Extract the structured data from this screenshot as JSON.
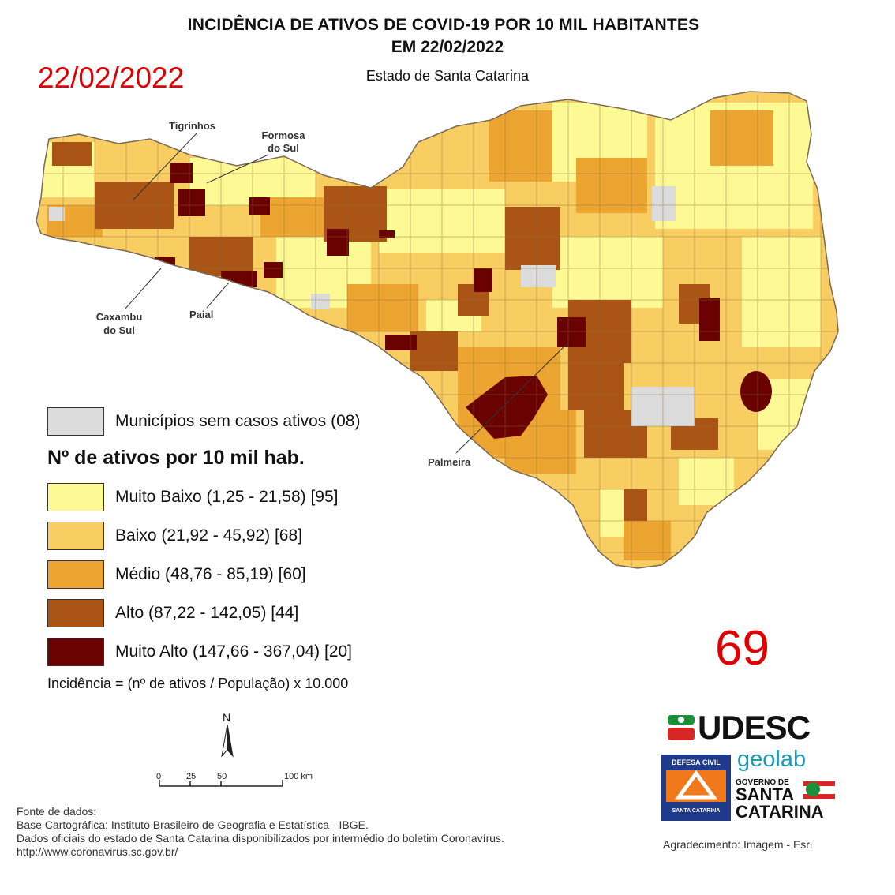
{
  "header": {
    "title_line1": "INCIDÊNCIA DE ATIVOS DE COVID-19 POR 10 MIL HABITANTES",
    "title_line2": "EM 22/02/2022",
    "subtitle": "Estado de Santa Catarina",
    "date_red": "22/02/2022"
  },
  "big_number": "69",
  "map_labels": {
    "tigrinhos": "Tigrinhos",
    "formosa_1": "Formosa",
    "formosa_2": "do Sul",
    "caxambu_1": "Caxambu",
    "caxambu_2": "do Sul",
    "paial": "Paial",
    "palmeira": "Palmeira"
  },
  "legend": {
    "no_cases": "Municípios sem casos ativos (08)",
    "heading": "Nº de ativos por 10 mil hab.",
    "classes": [
      {
        "label": "Muito Baixo (1,25 - 21,58) [95]",
        "color": "#fdf995"
      },
      {
        "label": "Baixo (21,92 - 45,92) [68]",
        "color": "#f8cd62"
      },
      {
        "label": "Médio (48,76 - 85,19) [60]",
        "color": "#eda532"
      },
      {
        "label": "Alto (87,22 - 142,05) [44]",
        "color": "#aa5416"
      },
      {
        "label": "Muito Alto (147,66 - 367,04) [20]",
        "color": "#6a0202"
      }
    ],
    "no_cases_color": "#dcdcdc",
    "formula": "Incidência = (nº de ativos / População) x 10.000"
  },
  "scale_bar": {
    "north": "N",
    "ticks": [
      "0",
      "25",
      "50",
      "100 km"
    ]
  },
  "sources": {
    "line1": "Fonte de dados:",
    "line2": "Base Cartográfica: Instituto Brasileiro de Geografia e Estatística - IBGE.",
    "line3": "Dados oficiais do estado de Santa Catarina disponibilizados por intermédio do boletim Coronavírus.",
    "line4": "http://www.coronavirus.sc.gov.br/"
  },
  "logos": {
    "udesc": "UDESC",
    "geolab": "geolab",
    "defesa_top": "DEFESA CIVIL",
    "defesa_bottom": "SANTA CATARINA",
    "gov_line1": "GOVERNO DE",
    "gov_line2": "SANTA",
    "gov_line3": "CATARINA"
  },
  "acknowledgement": "Agradecimento: Imagem - Esri"
}
